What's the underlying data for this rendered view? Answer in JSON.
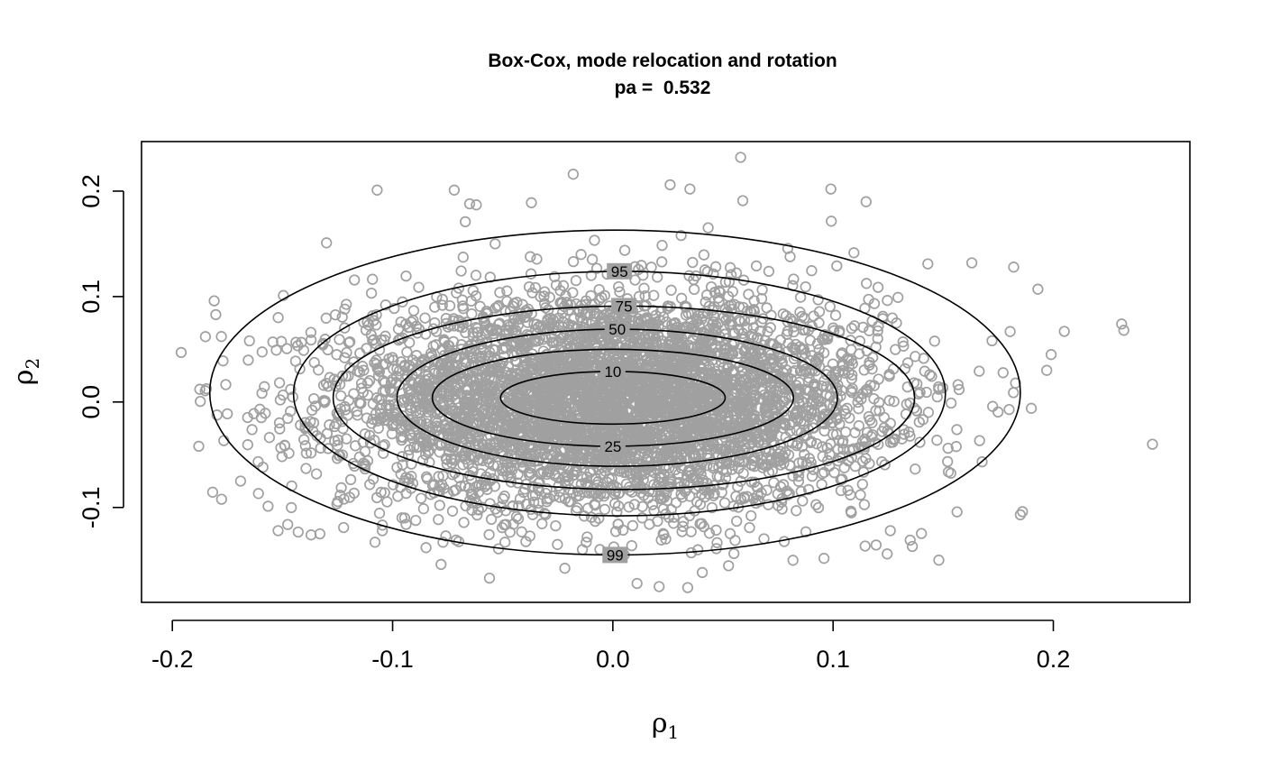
{
  "chart_data": {
    "type": "scatter",
    "title": "Box-Cox, mode relocation and rotation",
    "subtitle": "pa =  0.532",
    "xlabel": {
      "symbol": "ρ",
      "sub": "1"
    },
    "ylabel": {
      "symbol": "ρ",
      "sub": "2"
    },
    "xlim": [
      -0.214,
      0.262
    ],
    "ylim": [
      -0.19,
      0.247
    ],
    "x_ticks": [
      -0.2,
      -0.1,
      0.0,
      0.1,
      0.2
    ],
    "x_tick_labels": [
      "-0.2",
      "-0.1",
      "0.0",
      "0.1",
      "0.2"
    ],
    "y_ticks": [
      -0.1,
      0.0,
      0.1,
      0.2
    ],
    "y_tick_labels": [
      "-0.1",
      "0.0",
      "0.1",
      "0.2"
    ],
    "grid": false,
    "colors": {
      "points": "#a0a0a0",
      "contours": "#000000"
    },
    "point_cloud": {
      "n": 5000,
      "center": [
        0.0,
        0.0
      ],
      "sd": [
        0.06,
        0.05
      ]
    },
    "points_outliers": [
      {
        "x": -0.196,
        "y": 0.047
      },
      {
        "x": -0.181,
        "y": 0.096
      },
      {
        "x": -0.177,
        "y": 0.039
      },
      {
        "x": -0.185,
        "y": 0.062
      },
      {
        "x": -0.188,
        "y": -0.042
      },
      {
        "x": -0.169,
        "y": -0.075
      },
      {
        "x": -0.165,
        "y": 0.058
      },
      {
        "x": -0.163,
        "y": -0.011
      },
      {
        "x": -0.152,
        "y": -0.122
      },
      {
        "x": -0.107,
        "y": 0.201
      },
      {
        "x": -0.072,
        "y": 0.201
      },
      {
        "x": -0.065,
        "y": 0.188
      },
      {
        "x": -0.037,
        "y": 0.189
      },
      {
        "x": -0.018,
        "y": 0.216
      },
      {
        "x": 0.026,
        "y": 0.206
      },
      {
        "x": 0.035,
        "y": 0.202
      },
      {
        "x": 0.058,
        "y": 0.232
      },
      {
        "x": 0.099,
        "y": 0.202
      },
      {
        "x": 0.115,
        "y": 0.19
      },
      {
        "x": 0.059,
        "y": 0.191
      },
      {
        "x": 0.231,
        "y": 0.074
      },
      {
        "x": 0.232,
        "y": 0.068
      },
      {
        "x": 0.245,
        "y": -0.04
      },
      {
        "x": 0.205,
        "y": 0.067
      },
      {
        "x": 0.199,
        "y": 0.045
      },
      {
        "x": 0.186,
        "y": -0.104
      },
      {
        "x": 0.185,
        "y": -0.107
      },
      {
        "x": 0.193,
        "y": 0.107
      },
      {
        "x": 0.182,
        "y": 0.128
      },
      {
        "x": 0.148,
        "y": -0.15
      },
      {
        "x": 0.135,
        "y": -0.131
      },
      {
        "x": 0.136,
        "y": -0.137
      },
      {
        "x": 0.034,
        "y": -0.176
      },
      {
        "x": 0.021,
        "y": -0.175
      },
      {
        "x": 0.011,
        "y": -0.172
      },
      {
        "x": -0.056,
        "y": -0.167
      },
      {
        "x": -0.078,
        "y": -0.154
      },
      {
        "x": -0.137,
        "y": -0.126
      },
      {
        "x": -0.133,
        "y": -0.125
      },
      {
        "x": -0.108,
        "y": -0.133
      },
      {
        "x": -0.062,
        "y": 0.187
      },
      {
        "x": 0.163,
        "y": 0.132
      },
      {
        "x": 0.143,
        "y": 0.131
      },
      {
        "x": -0.067,
        "y": 0.171
      },
      {
        "x": -0.13,
        "y": 0.151
      },
      {
        "x": 0.031,
        "y": 0.158
      },
      {
        "x": 0.126,
        "y": -0.122
      },
      {
        "x": -0.149,
        "y": -0.041
      },
      {
        "x": 0.19,
        "y": -0.006
      },
      {
        "x": 0.197,
        "y": 0.03
      }
    ],
    "contours": [
      {
        "label": "10",
        "rx": 0.051,
        "ry": 0.025,
        "label_pos": "top"
      },
      {
        "label": "25",
        "rx": 0.082,
        "ry": 0.046,
        "label_pos": "bottom"
      },
      {
        "label": "50",
        "rx": 0.1,
        "ry": 0.065,
        "label_pos": "top"
      },
      {
        "label": "75",
        "rx": 0.132,
        "ry": 0.087,
        "label_pos": "top"
      },
      {
        "label": "95",
        "rx": 0.148,
        "ry": 0.116,
        "label_pos": "top"
      },
      {
        "label": "99",
        "rx": 0.184,
        "ry": 0.154,
        "label_pos": "bottom"
      }
    ],
    "contour_centers": [
      {
        "label": "10",
        "x": 0.0,
        "y": 0.004
      },
      {
        "label": "25",
        "x": 0.0,
        "y": 0.004
      },
      {
        "label": "50",
        "x": 0.002,
        "y": 0.004
      },
      {
        "label": "75",
        "x": 0.005,
        "y": 0.004
      },
      {
        "label": "95",
        "x": 0.003,
        "y": 0.008
      },
      {
        "label": "99",
        "x": 0.001,
        "y": 0.009
      }
    ]
  }
}
